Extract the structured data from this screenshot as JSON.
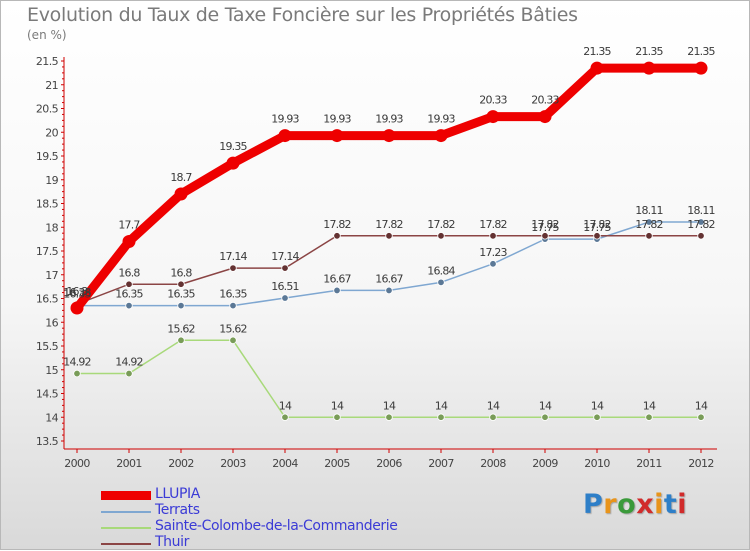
{
  "title": "Evolution du Taux de Taxe Foncière sur les Propriétés Bâties",
  "subtitle": "(en %)",
  "logo": {
    "text": "Proxiti",
    "colors": [
      "#2e7fc8",
      "#e8941b",
      "#3a9a3a",
      "#d12b2b",
      "#e8941b",
      "#2e7fc8",
      "#d12b2b"
    ]
  },
  "chart_data": {
    "type": "line",
    "x": [
      "2000",
      "2001",
      "2002",
      "2003",
      "2004",
      "2005",
      "2006",
      "2007",
      "2008",
      "2009",
      "2010",
      "2011",
      "2012"
    ],
    "ylim": [
      13.5,
      21.5
    ],
    "yticks": [
      "13.5",
      "14",
      "14.5",
      "15",
      "15.5",
      "16",
      "16.5",
      "17",
      "17.5",
      "18",
      "18.5",
      "19",
      "19.5",
      "20",
      "20.5",
      "21",
      "21.5"
    ],
    "grid": false,
    "legend_position": "bottom-left",
    "series": [
      {
        "name": "LLUPIA",
        "color": "#ee0000",
        "emphasis": true,
        "values": [
          16.3,
          17.7,
          18.7,
          19.35,
          19.93,
          19.93,
          19.93,
          19.93,
          20.33,
          20.33,
          21.35,
          21.35,
          21.35
        ],
        "labels": [
          "16.3",
          "17.7",
          "18.7",
          "19.35",
          "19.93",
          "19.93",
          "19.93",
          "19.93",
          "20.33",
          "20.33",
          "21.35",
          "21.35",
          "21.35"
        ]
      },
      {
        "name": "Terrats",
        "color": "#7fa7d1",
        "values": [
          16.35,
          16.35,
          16.35,
          16.35,
          16.51,
          16.67,
          16.67,
          16.84,
          17.23,
          17.75,
          17.75,
          18.11,
          18.11
        ],
        "labels": [
          "16.35",
          "16.35",
          "16.35",
          "16.35",
          "16.51",
          "16.67",
          "16.67",
          "16.84",
          "17.23",
          "17.75",
          "17.75",
          "18.11",
          "18.11"
        ]
      },
      {
        "name": "Sainte-Colombe-de-la-Commanderie",
        "color": "#a8d97a",
        "values": [
          14.92,
          14.92,
          15.62,
          15.62,
          14,
          14,
          14,
          14,
          14,
          14,
          14,
          14,
          14
        ],
        "labels": [
          "14.92",
          "14.92",
          "15.62",
          "15.62",
          "14",
          "14",
          "14",
          "14",
          "14",
          "14",
          "14",
          "14",
          "14"
        ]
      },
      {
        "name": "Thuir",
        "color": "#8b4545",
        "values": [
          16.38,
          16.8,
          16.8,
          17.14,
          17.14,
          17.82,
          17.82,
          17.82,
          17.82,
          17.82,
          17.82,
          17.82,
          17.82
        ],
        "labels": [
          "16.38",
          "16.8",
          "16.8",
          "17.14",
          "17.14",
          "17.82",
          "17.82",
          "17.82",
          "17.82",
          "17.82",
          "17.82",
          "17.82",
          "17.82"
        ]
      }
    ]
  }
}
